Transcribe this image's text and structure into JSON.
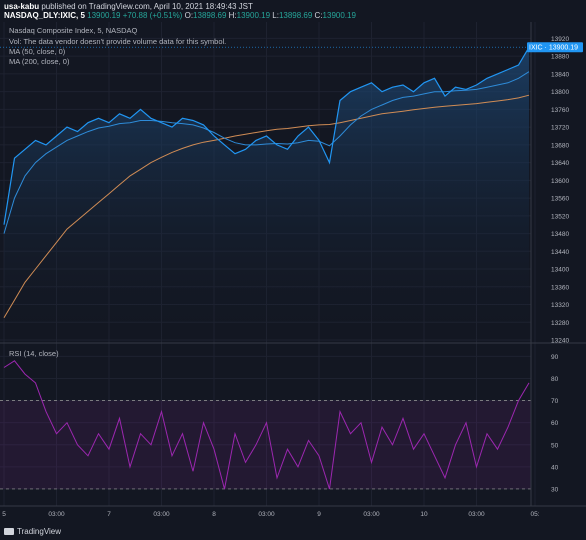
{
  "header": {
    "user": "usa-kabu",
    "published": "published on TradingView.com, April 10, 2021 18:49:43 JST",
    "symbol": "NASDAQ_DLY:IXIC, 5",
    "last": "13900.19",
    "change": "+70.88 (+0.51%)",
    "o_label": "O:",
    "o": "13898.69",
    "h_label": "H:",
    "h": "13900.19",
    "l_label": "L:",
    "l": "13898.69",
    "c_label": "C:",
    "c": "13900.19"
  },
  "legend": {
    "title": "Nasdaq Composite Index, 5, NASDAQ",
    "vol": "Vol: The data vendor doesn't provide volume data for this symbol.",
    "ma50": "MA (50, close, 0)",
    "ma200": "MA (200, close, 0)"
  },
  "price_label": {
    "symbol": "IXIC",
    "value": "13900.19"
  },
  "colors": {
    "price": "#2196f3",
    "ma50": "#2e8bd8",
    "ma200": "#d08c55",
    "rsi": "#9c27b0",
    "band_line": "#9c9c9c",
    "bg": "#131722"
  },
  "footer": {
    "brand": "TradingView"
  },
  "chart_data": [
    {
      "type": "line",
      "title": "Nasdaq Composite Index, 5, NASDAQ",
      "ylim": [
        13240,
        13930
      ],
      "yticks": [
        "13920",
        "13880",
        "13840",
        "13800",
        "13760",
        "13720",
        "13680",
        "13640",
        "13600",
        "13560",
        "13520",
        "13480",
        "13440",
        "13400",
        "13360",
        "13320",
        "13280",
        "13240"
      ],
      "xticks": [
        "5",
        "03:00",
        "7",
        "03:00",
        "8",
        "03:00",
        "9",
        "03:00",
        "10",
        "03:00",
        "05:"
      ],
      "x": [
        0,
        2,
        4,
        6,
        8,
        10,
        12,
        14,
        16,
        18,
        20,
        22,
        24,
        26,
        28,
        30,
        32,
        34,
        36,
        38,
        40,
        42,
        44,
        46,
        48,
        50,
        52,
        54,
        56,
        58,
        60,
        62,
        64,
        66,
        68,
        70,
        72,
        74,
        76,
        78,
        80,
        82,
        84,
        86,
        88,
        90,
        92,
        94,
        96,
        98,
        100
      ],
      "series": [
        {
          "name": "Nasdaq Composite Index",
          "values": [
            13500,
            13650,
            13670,
            13690,
            13680,
            13700,
            13720,
            13710,
            13730,
            13740,
            13730,
            13750,
            13740,
            13760,
            13740,
            13730,
            13720,
            13740,
            13735,
            13725,
            13700,
            13680,
            13660,
            13670,
            13690,
            13700,
            13680,
            13670,
            13700,
            13720,
            13690,
            13640,
            13780,
            13800,
            13810,
            13820,
            13800,
            13810,
            13815,
            13800,
            13820,
            13830,
            13790,
            13810,
            13805,
            13815,
            13830,
            13840,
            13850,
            13860,
            13900
          ]
        },
        {
          "name": "MA (50, close, 0)",
          "values": [
            13480,
            13560,
            13610,
            13640,
            13660,
            13675,
            13690,
            13700,
            13710,
            13718,
            13722,
            13728,
            13730,
            13735,
            13735,
            13733,
            13730,
            13728,
            13725,
            13718,
            13708,
            13695,
            13685,
            13680,
            13680,
            13682,
            13683,
            13682,
            13685,
            13690,
            13688,
            13678,
            13700,
            13725,
            13745,
            13760,
            13770,
            13780,
            13787,
            13790,
            13795,
            13800,
            13800,
            13802,
            13803,
            13805,
            13810,
            13815,
            13820,
            13830,
            13845
          ]
        },
        {
          "name": "MA (200, close, 0)",
          "values": [
            13290,
            13330,
            13370,
            13400,
            13430,
            13460,
            13490,
            13510,
            13530,
            13550,
            13570,
            13590,
            13610,
            13625,
            13640,
            13652,
            13663,
            13672,
            13680,
            13686,
            13690,
            13695,
            13700,
            13704,
            13708,
            13712,
            13715,
            13717,
            13720,
            13723,
            13725,
            13726,
            13730,
            13735,
            13740,
            13745,
            13750,
            13753,
            13756,
            13759,
            13762,
            13765,
            13767,
            13769,
            13771,
            13773,
            13776,
            13779,
            13782,
            13786,
            13792
          ]
        }
      ]
    },
    {
      "type": "line",
      "title": "RSI (14, close)",
      "ylim": [
        25,
        92
      ],
      "yticks": [
        "90",
        "80",
        "70",
        "60",
        "50",
        "40",
        "30"
      ],
      "bands": [
        30,
        70
      ],
      "series": [
        {
          "name": "RSI (14, close)",
          "values": [
            85,
            88,
            82,
            78,
            65,
            55,
            60,
            50,
            45,
            55,
            48,
            62,
            40,
            55,
            50,
            65,
            45,
            55,
            38,
            60,
            48,
            30,
            55,
            42,
            50,
            60,
            35,
            48,
            40,
            52,
            45,
            30,
            65,
            55,
            60,
            42,
            58,
            50,
            62,
            48,
            55,
            45,
            35,
            50,
            60,
            40,
            55,
            48,
            58,
            70,
            78
          ]
        }
      ]
    }
  ]
}
